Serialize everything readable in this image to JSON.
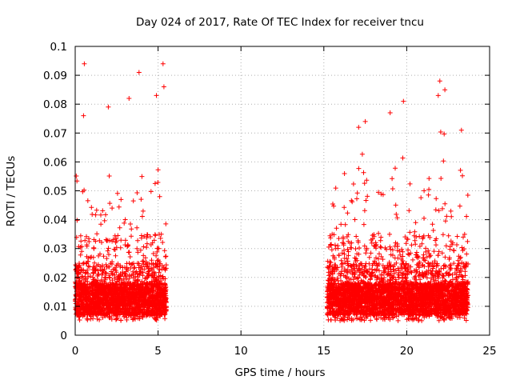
{
  "chart_data": {
    "type": "scatter",
    "title": "Day 024 of 2017, Rate Of TEC Index for receiver tncu",
    "xlabel": "GPS time / hours",
    "ylabel": "ROTI / TECUs",
    "xlim": [
      0,
      25
    ],
    "ylim": [
      0,
      0.1
    ],
    "xticks": [
      "0",
      "5",
      "10",
      "15",
      "20",
      "25"
    ],
    "yticks": [
      "0",
      "0.01",
      "0.02",
      "0.03",
      "0.04",
      "0.05",
      "0.06",
      "0.07",
      "0.08",
      "0.09",
      "0.1"
    ],
    "grid": true,
    "marker": "+",
    "color": "#ff0000",
    "data_segments": [
      {
        "x_range": [
          0.0,
          5.5
        ]
      },
      {
        "x_range": [
          15.2,
          23.7
        ]
      }
    ],
    "peaks": [
      {
        "x": 0.55,
        "y": 0.094
      },
      {
        "x": 0.5,
        "y": 0.076
      },
      {
        "x": 2.0,
        "y": 0.079
      },
      {
        "x": 3.25,
        "y": 0.082
      },
      {
        "x": 3.85,
        "y": 0.091
      },
      {
        "x": 4.9,
        "y": 0.083
      },
      {
        "x": 5.3,
        "y": 0.094
      },
      {
        "x": 5.35,
        "y": 0.086
      },
      {
        "x": 17.1,
        "y": 0.072
      },
      {
        "x": 17.5,
        "y": 0.074
      },
      {
        "x": 19.0,
        "y": 0.077
      },
      {
        "x": 19.8,
        "y": 0.081
      },
      {
        "x": 21.9,
        "y": 0.083
      },
      {
        "x": 22.0,
        "y": 0.088
      },
      {
        "x": 22.3,
        "y": 0.085
      },
      {
        "x": 23.3,
        "y": 0.071
      }
    ]
  }
}
